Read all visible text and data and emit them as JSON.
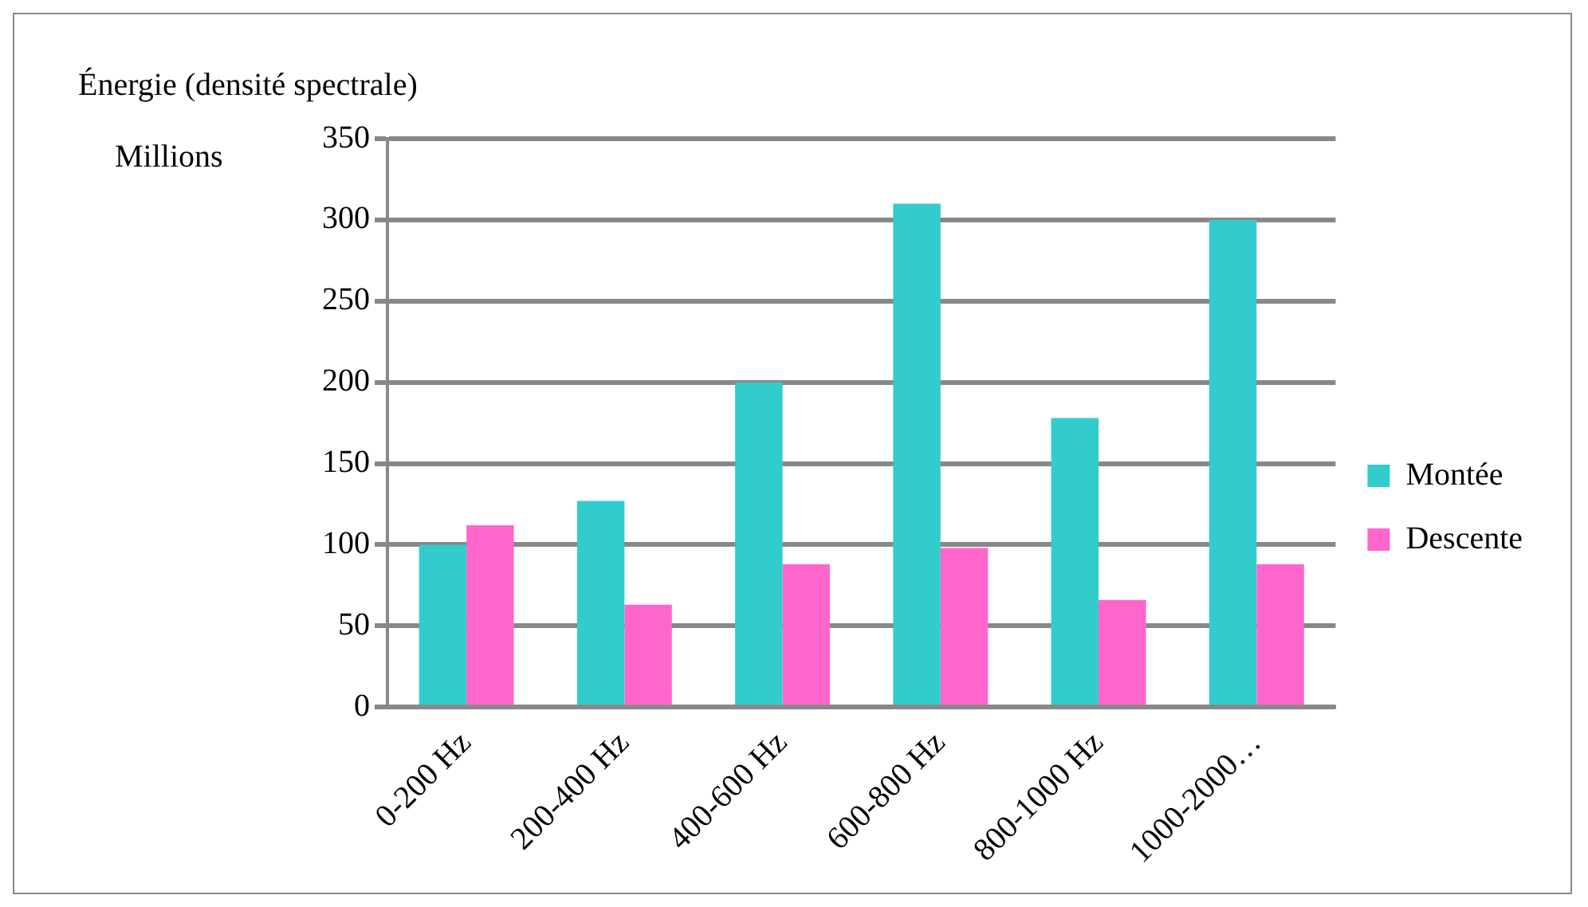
{
  "chart_data": {
    "type": "bar",
    "ylabel": "Énergie (densité spectrale)",
    "annotations": [
      "Millions"
    ],
    "categories": [
      "0-200 Hz",
      "200-400 Hz",
      "400-600 Hz",
      "600-800 Hz",
      "800-1000 Hz",
      "1000-2000…"
    ],
    "series": [
      {
        "name": "Montée",
        "color": "#33cccc",
        "values": [
          100,
          127,
          200,
          310,
          178,
          300
        ]
      },
      {
        "name": "Descente",
        "color": "#ff66cc",
        "values": [
          112,
          63,
          88,
          98,
          66,
          88
        ]
      }
    ],
    "ylim": [
      0,
      350
    ],
    "yticks": [
      0,
      50,
      100,
      150,
      200,
      250,
      300,
      350
    ],
    "grid": "y",
    "legend": "right"
  }
}
